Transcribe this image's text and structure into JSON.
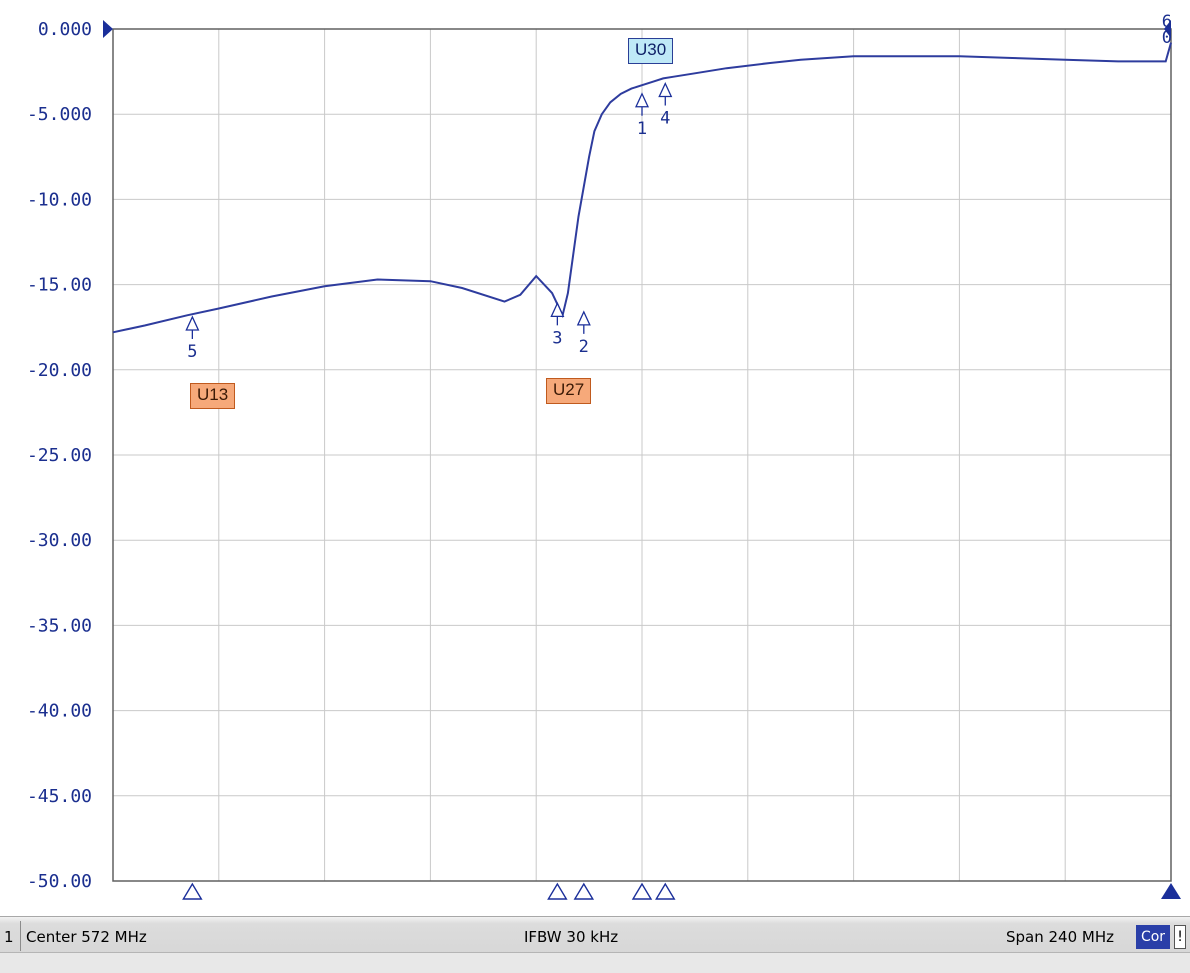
{
  "chart_data": {
    "type": "line",
    "y_ticks": [
      "0.000",
      "-5.000",
      "-10.00",
      "-15.00",
      "-20.00",
      "-25.00",
      "-30.00",
      "-35.00",
      "-40.00",
      "-45.00",
      "-50.00"
    ],
    "ylim": [
      -50,
      0
    ],
    "x_divisions": 10,
    "grid": true,
    "series": [
      {
        "color": "#2e3c9e",
        "x": [
          0,
          0.3,
          0.7,
          1.0,
          1.5,
          2.0,
          2.5,
          3.0,
          3.3,
          3.7,
          3.85,
          4.0,
          4.15,
          4.25,
          4.3,
          4.4,
          4.5,
          4.55,
          4.62,
          4.7,
          4.8,
          4.9,
          5.0,
          5.1,
          5.2,
          5.3,
          5.5,
          5.8,
          6.2,
          6.5,
          7.0,
          7.5,
          8.0,
          8.5,
          9.0,
          9.5,
          9.95,
          10.0
        ],
        "y": [
          -17.8,
          -17.4,
          -16.8,
          -16.4,
          -15.7,
          -15.1,
          -14.7,
          -14.8,
          -15.2,
          -16.0,
          -15.6,
          -14.5,
          -15.5,
          -16.8,
          -15.5,
          -11.0,
          -7.5,
          -6.0,
          -5.0,
          -4.3,
          -3.8,
          -3.5,
          -3.3,
          -3.1,
          -2.9,
          -2.8,
          -2.6,
          -2.3,
          -2.0,
          -1.8,
          -1.6,
          -1.6,
          -1.6,
          -1.7,
          -1.8,
          -1.9,
          -1.9,
          -0.8
        ]
      }
    ],
    "markers": [
      {
        "label": "1",
        "x": 5.0,
        "y": -3.8
      },
      {
        "label": "2",
        "x": 4.45,
        "y": -16.6
      },
      {
        "label": "3",
        "x": 4.2,
        "y": -16.1
      },
      {
        "label": "4",
        "x": 5.22,
        "y": -3.2
      },
      {
        "label": "5",
        "x": 0.75,
        "y": -16.9
      },
      {
        "label": "6",
        "x": 9.98,
        "y": -1.0
      },
      {
        "label": "0",
        "x": 9.98,
        "y": -1.2
      }
    ],
    "bottom_markers_x": [
      0.75,
      4.2,
      4.45,
      5.0,
      5.22
    ]
  },
  "annotations": {
    "u13": "U13",
    "u27": "U27",
    "u30": "U30"
  },
  "status_bar": {
    "channel": "1",
    "center": "Center 572 MHz",
    "ifbw": "IFBW 30 kHz",
    "span": "Span 240 MHz",
    "cor": "Cor",
    "warn": "!"
  }
}
